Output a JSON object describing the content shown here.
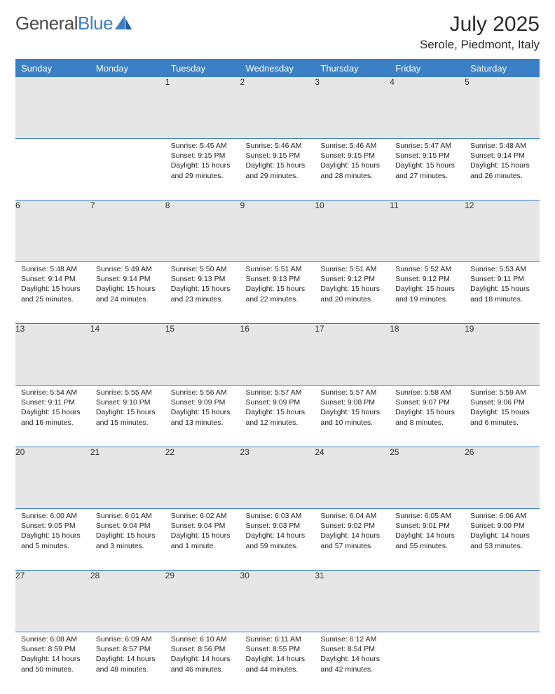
{
  "logo": {
    "part1": "General",
    "part2": "Blue"
  },
  "title": "July 2025",
  "location": "Serole, Piedmont, Italy",
  "colors": {
    "header_bg": "#3b7fc4",
    "header_text": "#ffffff",
    "daynum_bg": "#e6e6e6",
    "border": "#3b7fc4",
    "page_bg": "#ffffff",
    "text": "#212121"
  },
  "weekdays": [
    "Sunday",
    "Monday",
    "Tuesday",
    "Wednesday",
    "Thursday",
    "Friday",
    "Saturday"
  ],
  "weeks": [
    [
      null,
      null,
      {
        "d": "1",
        "sr": "Sunrise: 5:45 AM",
        "ss": "Sunset: 9:15 PM",
        "dl": "Daylight: 15 hours and 29 minutes."
      },
      {
        "d": "2",
        "sr": "Sunrise: 5:46 AM",
        "ss": "Sunset: 9:15 PM",
        "dl": "Daylight: 15 hours and 29 minutes."
      },
      {
        "d": "3",
        "sr": "Sunrise: 5:46 AM",
        "ss": "Sunset: 9:15 PM",
        "dl": "Daylight: 15 hours and 28 minutes."
      },
      {
        "d": "4",
        "sr": "Sunrise: 5:47 AM",
        "ss": "Sunset: 9:15 PM",
        "dl": "Daylight: 15 hours and 27 minutes."
      },
      {
        "d": "5",
        "sr": "Sunrise: 5:48 AM",
        "ss": "Sunset: 9:14 PM",
        "dl": "Daylight: 15 hours and 26 minutes."
      }
    ],
    [
      {
        "d": "6",
        "sr": "Sunrise: 5:48 AM",
        "ss": "Sunset: 9:14 PM",
        "dl": "Daylight: 15 hours and 25 minutes."
      },
      {
        "d": "7",
        "sr": "Sunrise: 5:49 AM",
        "ss": "Sunset: 9:14 PM",
        "dl": "Daylight: 15 hours and 24 minutes."
      },
      {
        "d": "8",
        "sr": "Sunrise: 5:50 AM",
        "ss": "Sunset: 9:13 PM",
        "dl": "Daylight: 15 hours and 23 minutes."
      },
      {
        "d": "9",
        "sr": "Sunrise: 5:51 AM",
        "ss": "Sunset: 9:13 PM",
        "dl": "Daylight: 15 hours and 22 minutes."
      },
      {
        "d": "10",
        "sr": "Sunrise: 5:51 AM",
        "ss": "Sunset: 9:12 PM",
        "dl": "Daylight: 15 hours and 20 minutes."
      },
      {
        "d": "11",
        "sr": "Sunrise: 5:52 AM",
        "ss": "Sunset: 9:12 PM",
        "dl": "Daylight: 15 hours and 19 minutes."
      },
      {
        "d": "12",
        "sr": "Sunrise: 5:53 AM",
        "ss": "Sunset: 9:11 PM",
        "dl": "Daylight: 15 hours and 18 minutes."
      }
    ],
    [
      {
        "d": "13",
        "sr": "Sunrise: 5:54 AM",
        "ss": "Sunset: 9:11 PM",
        "dl": "Daylight: 15 hours and 16 minutes."
      },
      {
        "d": "14",
        "sr": "Sunrise: 5:55 AM",
        "ss": "Sunset: 9:10 PM",
        "dl": "Daylight: 15 hours and 15 minutes."
      },
      {
        "d": "15",
        "sr": "Sunrise: 5:56 AM",
        "ss": "Sunset: 9:09 PM",
        "dl": "Daylight: 15 hours and 13 minutes."
      },
      {
        "d": "16",
        "sr": "Sunrise: 5:57 AM",
        "ss": "Sunset: 9:09 PM",
        "dl": "Daylight: 15 hours and 12 minutes."
      },
      {
        "d": "17",
        "sr": "Sunrise: 5:57 AM",
        "ss": "Sunset: 9:08 PM",
        "dl": "Daylight: 15 hours and 10 minutes."
      },
      {
        "d": "18",
        "sr": "Sunrise: 5:58 AM",
        "ss": "Sunset: 9:07 PM",
        "dl": "Daylight: 15 hours and 8 minutes."
      },
      {
        "d": "19",
        "sr": "Sunrise: 5:59 AM",
        "ss": "Sunset: 9:06 PM",
        "dl": "Daylight: 15 hours and 6 minutes."
      }
    ],
    [
      {
        "d": "20",
        "sr": "Sunrise: 6:00 AM",
        "ss": "Sunset: 9:05 PM",
        "dl": "Daylight: 15 hours and 5 minutes."
      },
      {
        "d": "21",
        "sr": "Sunrise: 6:01 AM",
        "ss": "Sunset: 9:04 PM",
        "dl": "Daylight: 15 hours and 3 minutes."
      },
      {
        "d": "22",
        "sr": "Sunrise: 6:02 AM",
        "ss": "Sunset: 9:04 PM",
        "dl": "Daylight: 15 hours and 1 minute."
      },
      {
        "d": "23",
        "sr": "Sunrise: 6:03 AM",
        "ss": "Sunset: 9:03 PM",
        "dl": "Daylight: 14 hours and 59 minutes."
      },
      {
        "d": "24",
        "sr": "Sunrise: 6:04 AM",
        "ss": "Sunset: 9:02 PM",
        "dl": "Daylight: 14 hours and 57 minutes."
      },
      {
        "d": "25",
        "sr": "Sunrise: 6:05 AM",
        "ss": "Sunset: 9:01 PM",
        "dl": "Daylight: 14 hours and 55 minutes."
      },
      {
        "d": "26",
        "sr": "Sunrise: 6:06 AM",
        "ss": "Sunset: 9:00 PM",
        "dl": "Daylight: 14 hours and 53 minutes."
      }
    ],
    [
      {
        "d": "27",
        "sr": "Sunrise: 6:08 AM",
        "ss": "Sunset: 8:59 PM",
        "dl": "Daylight: 14 hours and 50 minutes."
      },
      {
        "d": "28",
        "sr": "Sunrise: 6:09 AM",
        "ss": "Sunset: 8:57 PM",
        "dl": "Daylight: 14 hours and 48 minutes."
      },
      {
        "d": "29",
        "sr": "Sunrise: 6:10 AM",
        "ss": "Sunset: 8:56 PM",
        "dl": "Daylight: 14 hours and 46 minutes."
      },
      {
        "d": "30",
        "sr": "Sunrise: 6:11 AM",
        "ss": "Sunset: 8:55 PM",
        "dl": "Daylight: 14 hours and 44 minutes."
      },
      {
        "d": "31",
        "sr": "Sunrise: 6:12 AM",
        "ss": "Sunset: 8:54 PM",
        "dl": "Daylight: 14 hours and 42 minutes."
      },
      null,
      null
    ]
  ]
}
